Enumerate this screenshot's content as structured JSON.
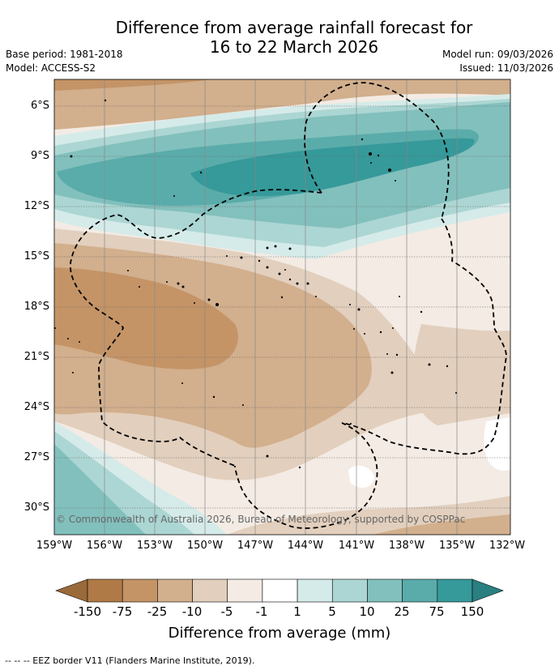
{
  "header": {
    "title_line1": "Difference from average rainfall forecast for",
    "title_line2": "16 to 22 March 2026",
    "base_period": "Base period: 1981-2018",
    "model": "Model: ACCESS-S2",
    "model_run": "Model run: 09/03/2026",
    "issued": "Issued: 11/03/2026"
  },
  "map": {
    "lat_labels": [
      "6°S",
      "9°S",
      "12°S",
      "15°S",
      "18°S",
      "21°S",
      "24°S",
      "27°S",
      "30°S"
    ],
    "lon_labels": [
      "159°W",
      "156°W",
      "153°W",
      "150°W",
      "147°W",
      "144°W",
      "141°W",
      "138°W",
      "135°W",
      "132°W"
    ],
    "copyright": "© Commonwealth of Australia 2026, Bureau of Meteorology, supported by COSPPac"
  },
  "colorbar": {
    "labels": [
      "-150",
      "-75",
      "-25",
      "-10",
      "-5",
      "-1",
      "1",
      "5",
      "10",
      "25",
      "75",
      "150"
    ],
    "colors": [
      "#9b6a3a",
      "#b07a47",
      "#c49467",
      "#d2af8d",
      "#e2cfbd",
      "#f3ebe4",
      "#ffffff",
      "#d5ebe9",
      "#acd6d3",
      "#82c0bd",
      "#5aacaa",
      "#36999a",
      "#2a7f80"
    ],
    "title": "Difference from average (mm)"
  },
  "footer": {
    "eez_note": "--  --  -- EEZ border V11 (Flanders Marine Institute, 2019)."
  }
}
